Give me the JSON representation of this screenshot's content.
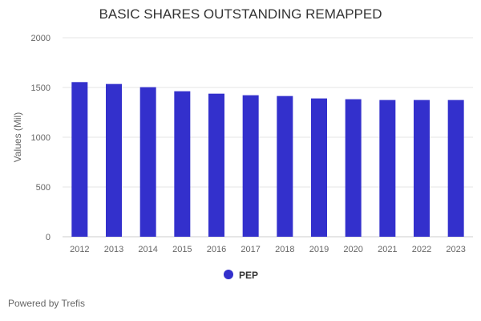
{
  "chart_data": {
    "type": "bar",
    "title": "BASIC SHARES OUTSTANDING REMAPPED",
    "ylabel": "Values (Mil)",
    "xlabel": "",
    "ylim": [
      0,
      2000
    ],
    "yticks": [
      0,
      500,
      1000,
      1500,
      2000
    ],
    "grid": true,
    "legend_placement": "bottom",
    "categories": [
      "2012",
      "2013",
      "2014",
      "2015",
      "2016",
      "2017",
      "2018",
      "2019",
      "2020",
      "2021",
      "2022",
      "2023"
    ],
    "series": [
      {
        "name": "PEP",
        "color": "#3330cc",
        "values": [
          1554,
          1535,
          1503,
          1462,
          1438,
          1422,
          1414,
          1390,
          1382,
          1374,
          1374,
          1374
        ]
      }
    ]
  },
  "footer": "Powered by Trefis"
}
